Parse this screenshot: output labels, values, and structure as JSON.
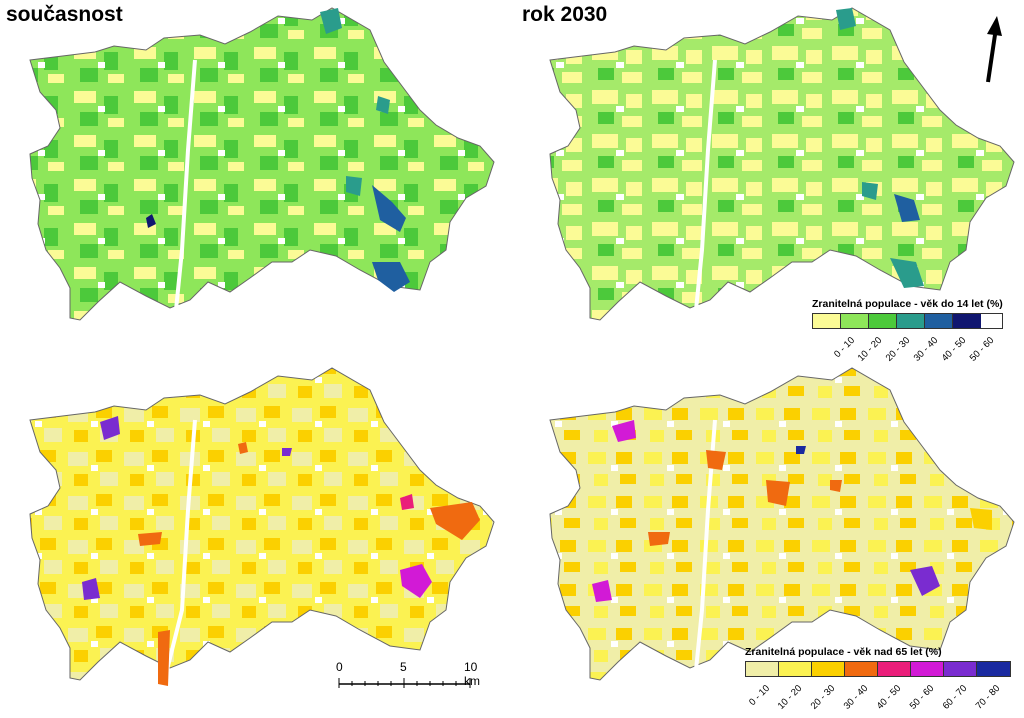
{
  "titles": {
    "current": "současnost",
    "future": "rok 2030"
  },
  "legend_young": {
    "title": "Zranitelná populace - věk do 14 let (%)",
    "classes": [
      {
        "label": "0 - 10",
        "color": "#fbfb96"
      },
      {
        "label": "10 - 20",
        "color": "#8ee65a"
      },
      {
        "label": "20 - 30",
        "color": "#4cc93b"
      },
      {
        "label": "30 - 40",
        "color": "#2a9c8c"
      },
      {
        "label": "40 - 50",
        "color": "#1f5fa0"
      },
      {
        "label": "50 - 60",
        "color": "#101670"
      }
    ]
  },
  "legend_old": {
    "title": "Zranitelná populace - věk nad 65 let (%)",
    "classes": [
      {
        "label": "0 - 10",
        "color": "#f0eea8"
      },
      {
        "label": "10 - 20",
        "color": "#fbf252"
      },
      {
        "label": "20 - 30",
        "color": "#fbd000"
      },
      {
        "label": "30 - 40",
        "color": "#f06a10"
      },
      {
        "label": "40 - 50",
        "color": "#ea1e7a"
      },
      {
        "label": "50 - 60",
        "color": "#d21ad6"
      },
      {
        "label": "60 - 70",
        "color": "#7a2cd0"
      },
      {
        "label": "70 - 80",
        "color": "#1a2aa0"
      }
    ]
  },
  "scale": {
    "labels": [
      "0",
      "5",
      "10 km"
    ]
  },
  "north_arrow": {
    "icon": "north-arrow-icon"
  }
}
